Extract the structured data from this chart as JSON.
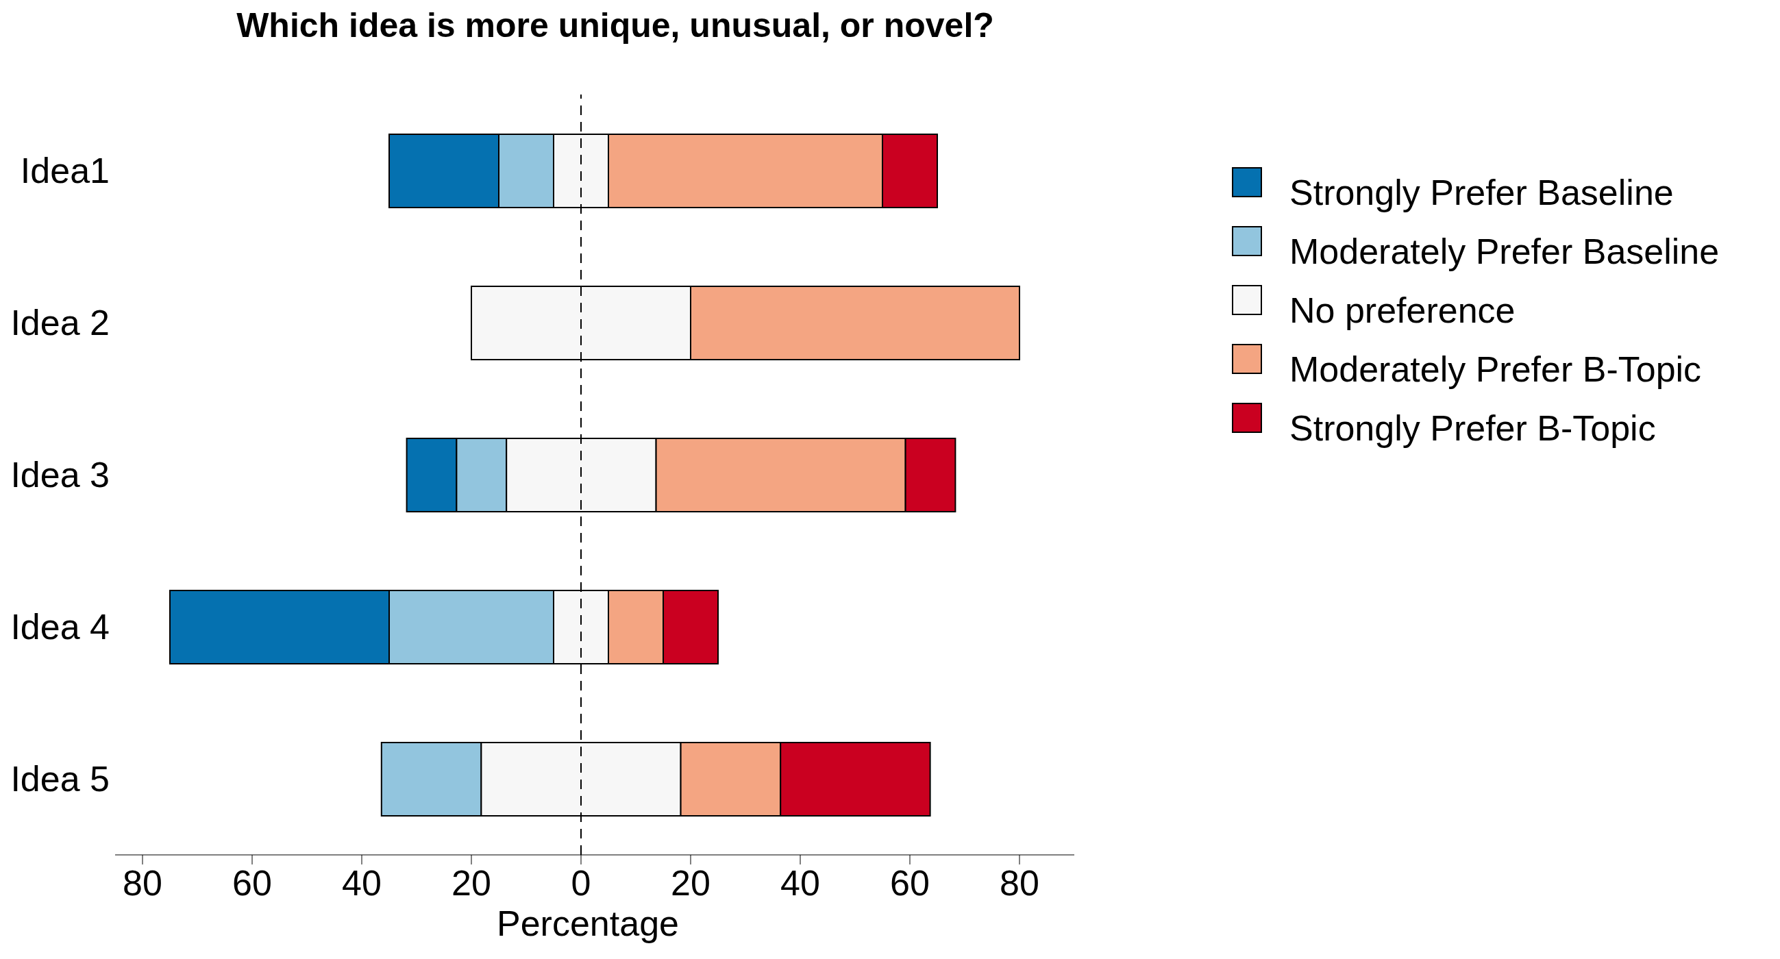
{
  "chart_data": {
    "type": "bar",
    "orientation": "horizontal",
    "title": "Which idea is more unique, unusual, or novel?",
    "xlabel": "Percentage",
    "categories": [
      "Idea1",
      "Idea 2",
      "Idea 3",
      "Idea 4",
      "Idea 5"
    ],
    "series": [
      {
        "name": "Strongly Prefer Baseline",
        "color": "#0571b0",
        "values": [
          20,
          null,
          9.1,
          40,
          null
        ],
        "base": [
          -35,
          null,
          -31.8,
          -75,
          null
        ]
      },
      {
        "name": "Moderately Prefer Baseline",
        "color": "#92c5de",
        "values": [
          10,
          null,
          9.1,
          30,
          18.2
        ],
        "base": [
          -15,
          null,
          -22.7,
          -35,
          -36.4
        ]
      },
      {
        "name": "No preference",
        "color": "#f7f7f7",
        "values": [
          10,
          40,
          27.3,
          10,
          36.4
        ],
        "base": [
          -5,
          -20,
          -13.6,
          -5,
          -18.2
        ]
      },
      {
        "name": "Moderately Prefer B-Topic",
        "color": "#f4a582",
        "values": [
          50,
          60,
          45.5,
          10,
          18.2
        ],
        "base": [
          5,
          20,
          13.7,
          5,
          18.2
        ]
      },
      {
        "name": "Strongly Prefer B-Topic",
        "color": "#ca0020",
        "values": [
          10,
          null,
          9.1,
          10,
          27.3
        ],
        "base": [
          55,
          null,
          59.2,
          15,
          36.4
        ]
      }
    ],
    "xlim": [
      -85,
      90
    ],
    "xticks": [
      {
        "value": -80,
        "label": "80"
      },
      {
        "value": -60,
        "label": "60"
      },
      {
        "value": -40,
        "label": "40"
      },
      {
        "value": -20,
        "label": "20"
      },
      0,
      20,
      40,
      60,
      80
    ],
    "ref_lines": [
      {
        "axis": "x",
        "value": 0,
        "label": null,
        "color": "#000000",
        "line_style": "dashed"
      }
    ],
    "legend": "right"
  }
}
